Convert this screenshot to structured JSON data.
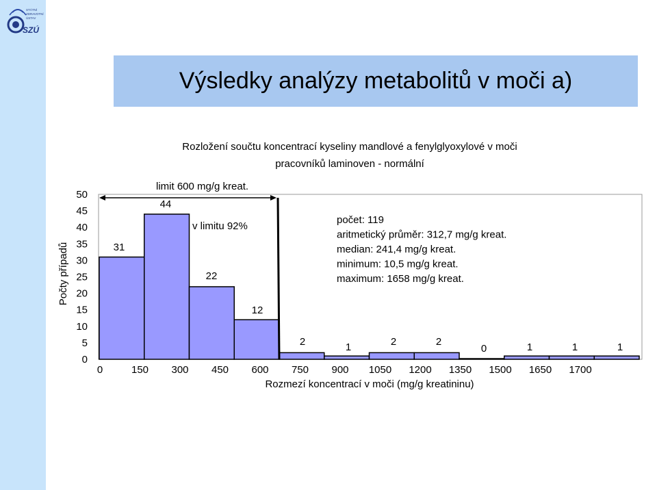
{
  "logo": {
    "text_lines": [
      "STÁTNÍ",
      "ZDRAVOTNÍ",
      "ÚSTAV"
    ],
    "mark": "SZÚ",
    "colors": {
      "ring": "#233a86",
      "accent": "#2b4aa8"
    }
  },
  "slide": {
    "title": "Výsledky analýzy metabolitů v moči a)",
    "banner_color": "#a8c8f0",
    "strip_color": "#c8e4fb"
  },
  "chart_data": {
    "type": "bar",
    "title": [
      "Rozložení součtu koncentrací kyseliny mandlové a fenylglyoxylové v moči",
      "pracovníků laminoven - normální"
    ],
    "xlabel": "Rozmezí koncentrací v moči (mg/g kreatininu)",
    "ylabel": "Počty případů",
    "x_ticks": [
      "0",
      "150",
      "300",
      "450",
      "600",
      "750",
      "900",
      "1050",
      "1200",
      "1350",
      "1500",
      "1650",
      "1700"
    ],
    "y_ticks": [
      "0",
      "5",
      "10",
      "15",
      "20",
      "25",
      "30",
      "35",
      "40",
      "45",
      "50"
    ],
    "ylim": [
      0,
      50
    ],
    "values": [
      31,
      44,
      22,
      12,
      2,
      1,
      2,
      2,
      0,
      1,
      1,
      1
    ],
    "value_labels": [
      "31",
      "44",
      "22",
      "12",
      "2",
      "1",
      "2",
      "2",
      "0",
      "1",
      "1",
      "1"
    ],
    "bar_color": "#9999ff",
    "limit_line": {
      "value": 600,
      "label": "limit 600 mg/g kreat.",
      "within_label": "v limitu 92%"
    },
    "stats": [
      "počet: 119",
      "aritmetický průměr: 312,7 mg/g kreat.",
      "median: 241,4 mg/g kreat.",
      "minimum: 10,5 mg/g kreat.",
      "maximum: 1658 mg/g kreat."
    ],
    "grid": false
  }
}
